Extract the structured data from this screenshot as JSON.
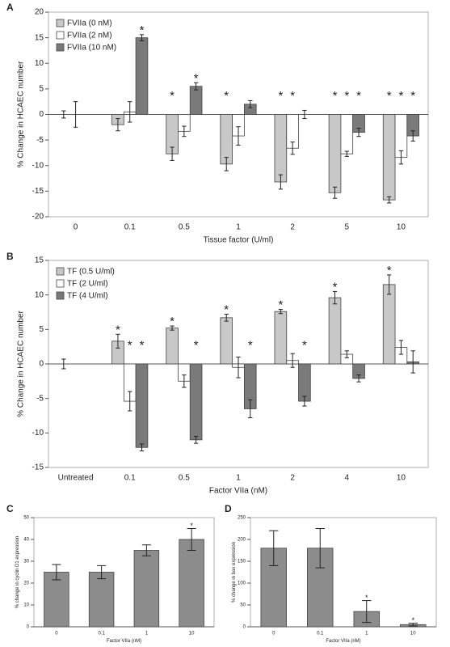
{
  "chart_data": [
    {
      "type": "bar",
      "panel_label": "A",
      "x_label": "Tissue factor (U/ml)",
      "y_label": "% Change in HCAEC number",
      "categories": [
        "0",
        "0.1",
        "0.5",
        "1",
        "2",
        "5",
        "10"
      ],
      "series": [
        {
          "name": "FVIIa (0 nM)",
          "color": "#c8c8c8",
          "values": [
            0,
            -2,
            -7.7,
            -9.7,
            -13.2,
            -15.3,
            -16.7
          ],
          "errors": [
            0.7,
            1.2,
            1.3,
            1.3,
            1.4,
            1.1,
            0.6
          ],
          "sig": [
            null,
            null,
            "*",
            "*",
            "*",
            "*",
            "*"
          ]
        },
        {
          "name": "FVIIa (2 nM)",
          "color": "#ffffff",
          "values": [
            0,
            0.5,
            -3.3,
            -4.2,
            -6.6,
            -7.7,
            -8.4
          ],
          "errors": [
            2.5,
            2,
            1,
            1.8,
            1.2,
            0.5,
            1.3
          ],
          "sig": [
            null,
            null,
            null,
            null,
            "*",
            "*",
            "*"
          ]
        },
        {
          "name": "FVIIa (10 nM)",
          "color": "#7a7a7a",
          "values": [
            null,
            15,
            5.5,
            2,
            0,
            -3.5,
            -4.2
          ],
          "errors": [
            null,
            0.6,
            0.7,
            0.7,
            0.8,
            0.8,
            1.0
          ],
          "sig": [
            null,
            "*",
            "*",
            null,
            null,
            "*",
            "*"
          ]
        }
      ],
      "ylim": [
        -20,
        20
      ],
      "yticks": [
        -20,
        -15,
        -10,
        -5,
        0,
        5,
        10,
        15,
        20
      ],
      "legend": "upper left"
    },
    {
      "type": "bar",
      "panel_label": "B",
      "x_label": "Factor VIIa (nM)",
      "y_label": "% Change in HCAEC number",
      "categories": [
        "Untreated",
        "0.1",
        "0.5",
        "1",
        "2",
        "4",
        "10"
      ],
      "series": [
        {
          "name": "TF (0.5 U/ml)",
          "color": "#c8c8c8",
          "values": [
            0,
            3.3,
            5.2,
            6.7,
            7.6,
            9.6,
            11.5
          ],
          "errors": [
            0.7,
            1,
            0.3,
            0.5,
            0.3,
            0.9,
            1.4
          ],
          "sig": [
            null,
            "*",
            "*",
            "*",
            "*",
            "*",
            "*"
          ]
        },
        {
          "name": "TF (2 U/ml)",
          "color": "#ffffff",
          "values": [
            null,
            -5.4,
            -2.5,
            -0.5,
            0.5,
            1.4,
            2.4
          ],
          "errors": [
            null,
            1.4,
            0.9,
            1.5,
            1,
            0.5,
            1
          ],
          "sig": [
            null,
            "*",
            null,
            null,
            null,
            null,
            null
          ]
        },
        {
          "name": "TF (4 U/ml)",
          "color": "#7a7a7a",
          "values": [
            null,
            -12.1,
            -11,
            -6.5,
            -5.4,
            -2.1,
            0.3
          ],
          "errors": [
            null,
            0.5,
            0.5,
            1.3,
            0.7,
            0.5,
            1.6
          ],
          "sig": [
            null,
            "*",
            "*",
            "*",
            "*",
            null,
            null
          ]
        }
      ],
      "ylim": [
        -15,
        15
      ],
      "yticks": [
        -15,
        -10,
        -5,
        0,
        5,
        10,
        15
      ],
      "legend": "upper left"
    },
    {
      "type": "bar",
      "panel_label": "C",
      "x_label": "Factor VIIa (nM)",
      "y_label": "% change in cyclin D1 expression",
      "categories": [
        "0",
        "0.1",
        "1",
        "10"
      ],
      "series": [
        {
          "color": "#8c8c8c",
          "values": [
            25,
            25,
            35,
            40
          ],
          "errors": [
            3.5,
            3,
            2.5,
            5
          ],
          "sig": [
            null,
            null,
            null,
            "*"
          ]
        }
      ],
      "ylim": [
        0,
        50
      ],
      "yticks": [
        0,
        10,
        20,
        30,
        40,
        50
      ]
    },
    {
      "type": "bar",
      "panel_label": "D",
      "x_label": "Factor VIIa (nM)",
      "y_label": "% change in bax expression",
      "categories": [
        "0",
        "0.1",
        "1",
        "10"
      ],
      "series": [
        {
          "color": "#8c8c8c",
          "values": [
            180,
            180,
            35,
            5
          ],
          "errors": [
            40,
            45,
            25,
            3
          ],
          "sig": [
            null,
            null,
            "*",
            "*"
          ]
        }
      ],
      "ylim": [
        0,
        250
      ],
      "yticks": [
        0,
        50,
        100,
        150,
        200,
        250
      ]
    }
  ]
}
